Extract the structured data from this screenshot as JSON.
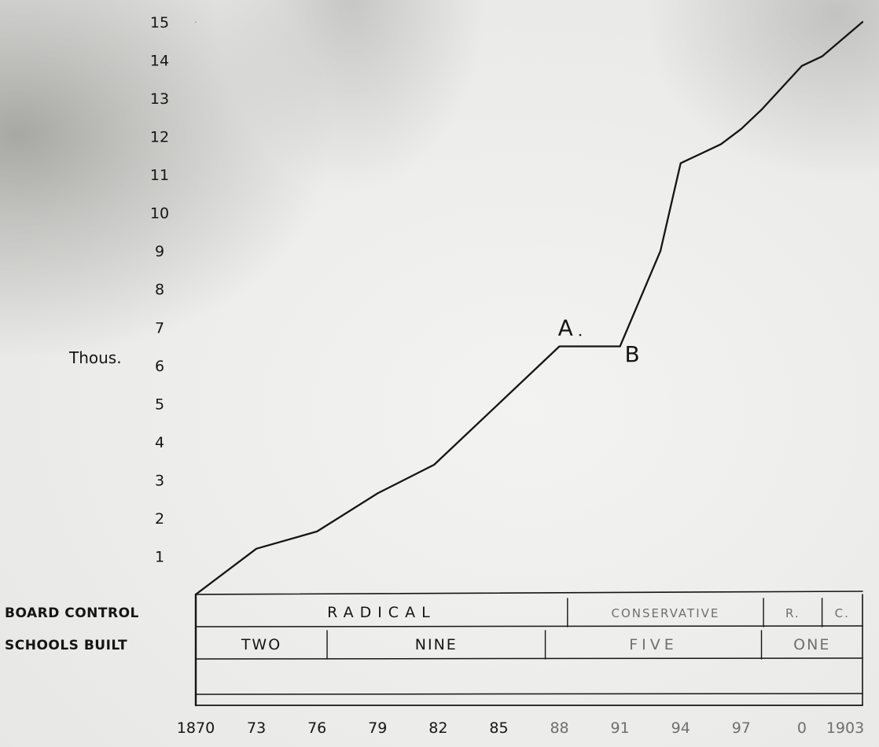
{
  "chart_data": {
    "type": "line",
    "ylabel": "Thous.",
    "y_ticks": [
      "1",
      "2",
      "3",
      "4",
      "5",
      "6",
      "7",
      "8",
      "9",
      "10",
      "11",
      "12",
      "13",
      "14",
      "15"
    ],
    "ylim": [
      0,
      15
    ],
    "x_tick_labels": [
      "1870",
      "73",
      "76",
      "79",
      "82",
      "85",
      "88",
      "91",
      "94",
      "97",
      "0",
      "1903"
    ],
    "x_tick_values": [
      1870,
      1873,
      1876,
      1879,
      1882,
      1885,
      1888,
      1891,
      1894,
      1897,
      1900,
      1903
    ],
    "xlim": [
      1870,
      1903
    ],
    "series": [
      {
        "x": [
          1870,
          1873,
          1876,
          1879,
          1881.8,
          1885,
          1888,
          1889,
          1890,
          1891,
          1893,
          1894,
          1896,
          1897,
          1898,
          1900,
          1901,
          1903
        ],
        "y": [
          0,
          1.2,
          1.65,
          2.65,
          3.4,
          5.0,
          6.5,
          6.5,
          6.5,
          6.5,
          9.0,
          11.3,
          11.8,
          12.2,
          12.7,
          13.85,
          14.1,
          15.0
        ]
      }
    ],
    "annotations": [
      {
        "text": "A",
        "x": 1888.3,
        "y": 7.0
      },
      {
        "text": "B",
        "x": 1891.6,
        "y": 6.3
      }
    ],
    "rows": [
      {
        "label": "BOARD CONTROL",
        "segments": [
          {
            "text": "RADICAL",
            "from": 1870,
            "to": 1888.4
          },
          {
            "text": "CONSERVATIVE",
            "from": 1888.4,
            "to": 1898.1
          },
          {
            "text": "R.",
            "from": 1898.1,
            "to": 1901.0
          },
          {
            "text": "C.",
            "from": 1901.0,
            "to": 1903
          }
        ]
      },
      {
        "label": "SCHOOLS BUILT",
        "segments": [
          {
            "text": "TWO",
            "from": 1870,
            "to": 1876.5
          },
          {
            "text": "NINE",
            "from": 1876.5,
            "to": 1887.3
          },
          {
            "text": "FIVE",
            "from": 1887.3,
            "to": 1898.0
          },
          {
            "text": "ONE",
            "from": 1898.0,
            "to": 1903
          }
        ]
      },
      {
        "label": "",
        "segments": []
      }
    ]
  }
}
